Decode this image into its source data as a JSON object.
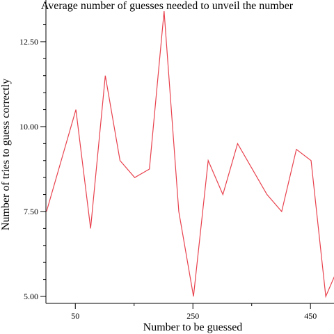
{
  "chart_data": {
    "type": "line",
    "title": "Average number of guesses needed to unveil the number",
    "xlabel": "Number to be guessed",
    "ylabel": "Number of tries to guess correctly",
    "xlim": [
      0,
      490
    ],
    "ylim": [
      5.0,
      13.4
    ],
    "x_ticks": [
      50,
      250,
      450
    ],
    "x_ticks_minor": [
      150,
      350
    ],
    "y_ticks": [
      5.0,
      7.5,
      10.0,
      12.5
    ],
    "y_ticks_minor": [
      5.5,
      6.0,
      6.5,
      7.0,
      8.0,
      8.5,
      9.0,
      9.5,
      10.5,
      11.0,
      11.5,
      12.0,
      13.0
    ],
    "x_tick_labels": [
      "50",
      "250",
      "450"
    ],
    "y_tick_labels": [
      "5.00",
      "7.50",
      "10.00",
      "12.50"
    ],
    "grid": false,
    "series": [
      {
        "color": "#e8414d",
        "x": [
          1,
          26,
          51,
          76,
          101,
          126,
          151,
          176,
          201,
          226,
          251,
          276,
          301,
          326,
          351,
          376,
          401,
          426,
          451,
          476,
          501
        ],
        "y": [
          7.5,
          9.0,
          10.5,
          7.0,
          11.5,
          9.0,
          8.5,
          8.75,
          13.4,
          7.5,
          5.0,
          9.0,
          8.0,
          9.5,
          8.75,
          8.0,
          7.5,
          9.33,
          9.0,
          5.0,
          6.0
        ]
      }
    ]
  }
}
